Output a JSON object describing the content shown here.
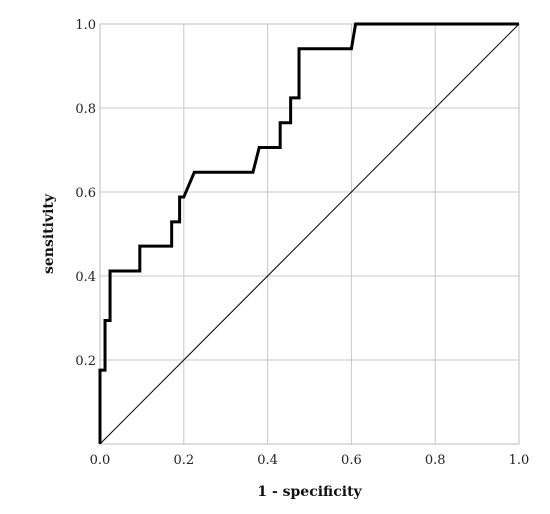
{
  "chart_data": {
    "type": "line",
    "xlabel": "1 - specificity",
    "ylabel": "sensitivity",
    "xlim": [
      0,
      1
    ],
    "ylim": [
      0,
      1
    ],
    "x_ticks": [
      "0.0",
      "0.2",
      "0.4",
      "0.6",
      "0.8",
      "1.0"
    ],
    "y_ticks": [
      "0.2",
      "0.4",
      "0.6",
      "0.8",
      "1.0"
    ],
    "grid": true,
    "series": [
      {
        "role": "roc",
        "color": "#000000",
        "points": [
          [
            0.0,
            0.0
          ],
          [
            0.0,
            0.176
          ],
          [
            0.012,
            0.176
          ],
          [
            0.012,
            0.294
          ],
          [
            0.024,
            0.294
          ],
          [
            0.024,
            0.412
          ],
          [
            0.095,
            0.412
          ],
          [
            0.095,
            0.471
          ],
          [
            0.171,
            0.471
          ],
          [
            0.171,
            0.529
          ],
          [
            0.19,
            0.529
          ],
          [
            0.19,
            0.588
          ],
          [
            0.2,
            0.588
          ],
          [
            0.225,
            0.647
          ],
          [
            0.365,
            0.647
          ],
          [
            0.38,
            0.706
          ],
          [
            0.43,
            0.706
          ],
          [
            0.43,
            0.765
          ],
          [
            0.455,
            0.765
          ],
          [
            0.455,
            0.824
          ],
          [
            0.475,
            0.824
          ],
          [
            0.475,
            0.941
          ],
          [
            0.6,
            0.941
          ],
          [
            0.61,
            1.0
          ],
          [
            1.0,
            1.0
          ]
        ]
      },
      {
        "role": "reference",
        "color": "#000000",
        "points": [
          [
            0,
            0
          ],
          [
            1,
            1
          ]
        ]
      }
    ]
  }
}
